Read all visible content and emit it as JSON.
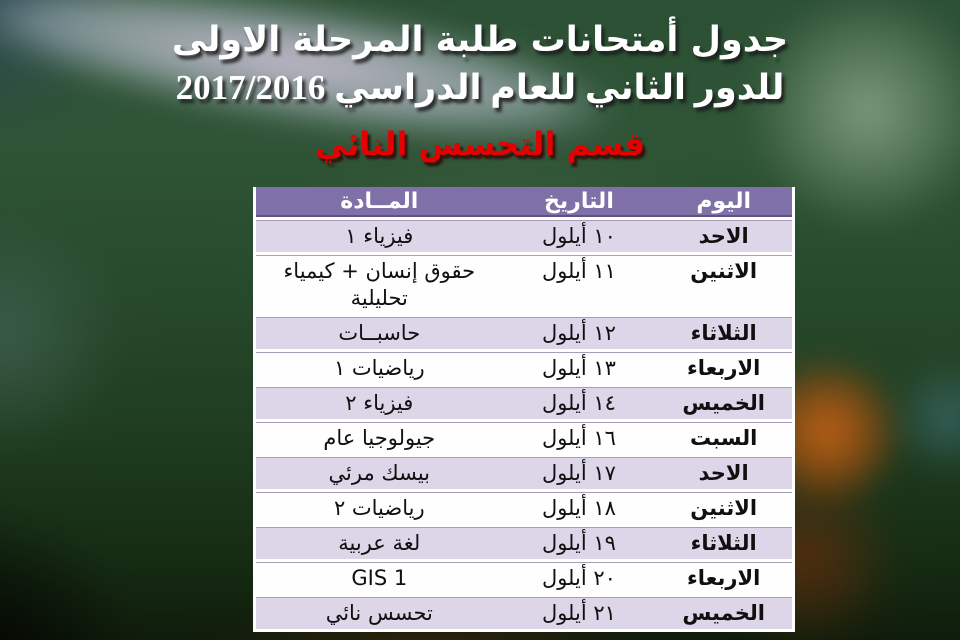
{
  "title": {
    "line1": "جدول أمتحانات طلبة المرحلة الاولى",
    "line2": "للدور الثاني للعام الدراسي 2017/2016",
    "department": "قسم التحسس النائي"
  },
  "colors": {
    "title_text": "#ffffff",
    "department_text": "#e60000",
    "table_header_bg": "#7f70a8",
    "row_alt_bg": "#dcd6e8",
    "row_bg": "#fefefe",
    "cell_text": "#101010"
  },
  "table": {
    "headers": {
      "day": "اليوم",
      "date": "التاريخ",
      "subject": "المــادة"
    },
    "rows": [
      {
        "day": "الاحد",
        "date": "١٠ أيلول",
        "subject": "فيزياء ١"
      },
      {
        "day": "الاثنين",
        "date": "١١ أيلول",
        "subject": "حقوق إنسان + كيمياء تحليلية"
      },
      {
        "day": "الثلاثاء",
        "date": "١٢ أيلول",
        "subject": "حاسبــات"
      },
      {
        "day": "الاربعاء",
        "date": "١٣ أيلول",
        "subject": "رياضيات ١"
      },
      {
        "day": "الخميس",
        "date": "١٤ أيلول",
        "subject": "فيزياء ٢"
      },
      {
        "day": "السبت",
        "date": "١٦ أيلول",
        "subject": "جيولوجيا عام"
      },
      {
        "day": "الاحد",
        "date": "١٧ أيلول",
        "subject": "بيسك مرئي"
      },
      {
        "day": "الاثنين",
        "date": "١٨ أيلول",
        "subject": "رياضيات ٢"
      },
      {
        "day": "الثلاثاء",
        "date": "١٩ أيلول",
        "subject": "لغة عربية"
      },
      {
        "day": "الاربعاء",
        "date": "٢٠ أيلول",
        "subject": "GIS 1"
      },
      {
        "day": "الخميس",
        "date": "٢١ أيلول",
        "subject": "تحسس نائي"
      }
    ]
  }
}
